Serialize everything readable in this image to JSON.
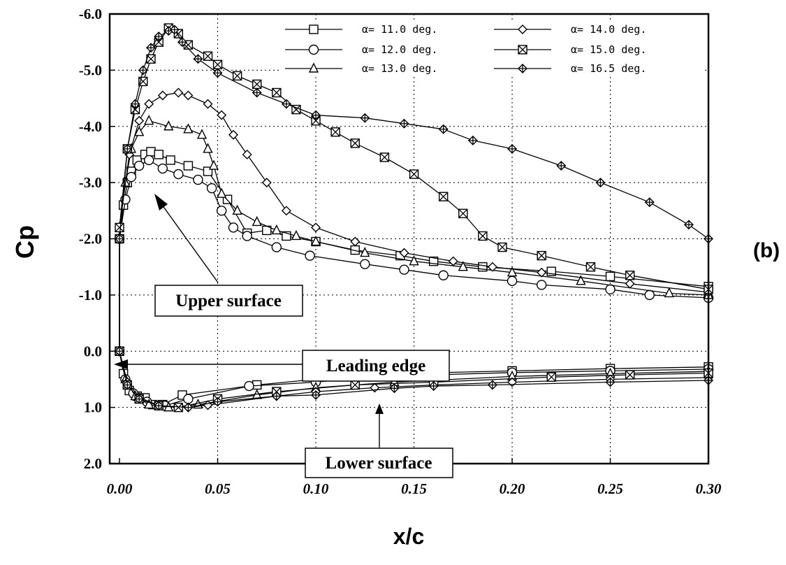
{
  "chart_data": {
    "type": "line",
    "xlabel": "x/c",
    "ylabel": "Cp",
    "panel_label": "(b)",
    "xlim": [
      -0.005,
      0.3
    ],
    "ylim": [
      2.0,
      -6.0
    ],
    "y_inverted": true,
    "grid": "dotted",
    "legend_placement": "top-right",
    "x_ticks": [
      "0.00",
      "0.05",
      "0.10",
      "0.15",
      "0.20",
      "0.25",
      "0.30"
    ],
    "y_ticks": [
      "-6.0",
      "-5.0",
      "-4.0",
      "-3.0",
      "-2.0",
      "-1.0",
      "0.0",
      "1.0",
      "2.0"
    ],
    "annotations": [
      "Upper surface",
      "Leading edge",
      "Lower surface"
    ],
    "series": [
      {
        "name": "α= 11.0 deg.",
        "marker": "square",
        "upper": [
          [
            0.0,
            -2.0
          ],
          [
            0.002,
            -2.6
          ],
          [
            0.004,
            -3.0
          ],
          [
            0.006,
            -3.2
          ],
          [
            0.009,
            -3.4
          ],
          [
            0.013,
            -3.5
          ],
          [
            0.016,
            -3.55
          ],
          [
            0.02,
            -3.5
          ],
          [
            0.026,
            -3.4
          ],
          [
            0.035,
            -3.3
          ],
          [
            0.045,
            -3.2
          ],
          [
            0.055,
            -2.7
          ],
          [
            0.065,
            -2.1
          ],
          [
            0.075,
            -2.15
          ],
          [
            0.085,
            -2.05
          ],
          [
            0.1,
            -1.95
          ],
          [
            0.12,
            -1.8
          ],
          [
            0.143,
            -1.7
          ],
          [
            0.16,
            -1.6
          ],
          [
            0.185,
            -1.5
          ],
          [
            0.22,
            -1.42
          ],
          [
            0.25,
            -1.33
          ],
          [
            0.3,
            -1.15
          ]
        ],
        "lower": [
          [
            0.0,
            0.0
          ],
          [
            0.002,
            0.4
          ],
          [
            0.005,
            0.7
          ],
          [
            0.009,
            0.8
          ],
          [
            0.013,
            0.83
          ],
          [
            0.017,
            0.95
          ],
          [
            0.022,
            0.95
          ],
          [
            0.032,
            0.78
          ],
          [
            0.07,
            0.6
          ],
          [
            0.1,
            0.5
          ],
          [
            0.14,
            0.4
          ],
          [
            0.2,
            0.35
          ],
          [
            0.25,
            0.31
          ],
          [
            0.3,
            0.28
          ]
        ]
      },
      {
        "name": "α= 12.0 deg.",
        "marker": "circle",
        "upper": [
          [
            0.0,
            -2.0
          ],
          [
            0.003,
            -2.7
          ],
          [
            0.006,
            -3.1
          ],
          [
            0.01,
            -3.3
          ],
          [
            0.015,
            -3.4
          ],
          [
            0.022,
            -3.25
          ],
          [
            0.03,
            -3.15
          ],
          [
            0.04,
            -3.05
          ],
          [
            0.047,
            -2.9
          ],
          [
            0.052,
            -2.5
          ],
          [
            0.058,
            -2.2
          ],
          [
            0.065,
            -2.05
          ],
          [
            0.08,
            -1.85
          ],
          [
            0.097,
            -1.7
          ],
          [
            0.125,
            -1.55
          ],
          [
            0.145,
            -1.45
          ],
          [
            0.165,
            -1.35
          ],
          [
            0.2,
            -1.25
          ],
          [
            0.215,
            -1.18
          ],
          [
            0.25,
            -1.1
          ],
          [
            0.27,
            -1.0
          ],
          [
            0.3,
            -0.95
          ]
        ],
        "lower": [
          [
            0.0,
            0.0
          ],
          [
            0.003,
            0.5
          ],
          [
            0.007,
            0.75
          ],
          [
            0.014,
            0.9
          ],
          [
            0.023,
            0.97
          ],
          [
            0.035,
            0.85
          ],
          [
            0.066,
            0.62
          ],
          [
            0.1,
            0.55
          ],
          [
            0.128,
            0.45
          ],
          [
            0.16,
            0.42
          ],
          [
            0.2,
            0.38
          ],
          [
            0.25,
            0.35
          ],
          [
            0.3,
            0.32
          ]
        ]
      },
      {
        "name": "α= 13.0 deg.",
        "marker": "triangle",
        "upper": [
          [
            0.0,
            -2.2
          ],
          [
            0.003,
            -3.0
          ],
          [
            0.006,
            -3.6
          ],
          [
            0.01,
            -3.9
          ],
          [
            0.015,
            -4.1
          ],
          [
            0.025,
            -4.0
          ],
          [
            0.035,
            -3.95
          ],
          [
            0.042,
            -3.85
          ],
          [
            0.045,
            -3.6
          ],
          [
            0.048,
            -3.3
          ],
          [
            0.052,
            -2.8
          ],
          [
            0.06,
            -2.5
          ],
          [
            0.07,
            -2.3
          ],
          [
            0.08,
            -2.15
          ],
          [
            0.09,
            -2.05
          ],
          [
            0.1,
            -1.95
          ],
          [
            0.125,
            -1.75
          ],
          [
            0.15,
            -1.6
          ],
          [
            0.175,
            -1.5
          ],
          [
            0.2,
            -1.4
          ],
          [
            0.235,
            -1.25
          ],
          [
            0.28,
            -1.03
          ],
          [
            0.3,
            -1.0
          ]
        ],
        "lower": [
          [
            0.0,
            0.0
          ],
          [
            0.003,
            0.5
          ],
          [
            0.008,
            0.8
          ],
          [
            0.015,
            0.95
          ],
          [
            0.025,
            1.0
          ],
          [
            0.04,
            0.95
          ],
          [
            0.07,
            0.78
          ],
          [
            0.1,
            0.65
          ],
          [
            0.14,
            0.55
          ],
          [
            0.2,
            0.45
          ],
          [
            0.25,
            0.4
          ],
          [
            0.3,
            0.36
          ]
        ]
      },
      {
        "name": "α= 14.0 deg.",
        "marker": "diamond",
        "upper": [
          [
            0.0,
            -2.2
          ],
          [
            0.005,
            -3.5
          ],
          [
            0.01,
            -4.1
          ],
          [
            0.015,
            -4.4
          ],
          [
            0.022,
            -4.55
          ],
          [
            0.03,
            -4.6
          ],
          [
            0.035,
            -4.55
          ],
          [
            0.045,
            -4.4
          ],
          [
            0.052,
            -4.2
          ],
          [
            0.058,
            -3.85
          ],
          [
            0.065,
            -3.5
          ],
          [
            0.075,
            -3.0
          ],
          [
            0.085,
            -2.5
          ],
          [
            0.1,
            -2.2
          ],
          [
            0.12,
            -1.95
          ],
          [
            0.145,
            -1.75
          ],
          [
            0.17,
            -1.6
          ],
          [
            0.19,
            -1.5
          ],
          [
            0.215,
            -1.4
          ],
          [
            0.26,
            -1.2
          ],
          [
            0.3,
            -1.05
          ]
        ],
        "lower": [
          [
            0.0,
            0.0
          ],
          [
            0.004,
            0.55
          ],
          [
            0.01,
            0.82
          ],
          [
            0.02,
            0.97
          ],
          [
            0.035,
            1.0
          ],
          [
            0.045,
            0.96
          ],
          [
            0.08,
            0.8
          ],
          [
            0.1,
            0.72
          ],
          [
            0.13,
            0.65
          ],
          [
            0.16,
            0.6
          ],
          [
            0.2,
            0.55
          ],
          [
            0.25,
            0.5
          ],
          [
            0.3,
            0.47
          ]
        ]
      },
      {
        "name": "α= 15.0 deg.",
        "marker": "boxed-x",
        "upper": [
          [
            0.0,
            -2.2
          ],
          [
            0.004,
            -3.6
          ],
          [
            0.008,
            -4.3
          ],
          [
            0.012,
            -4.8
          ],
          [
            0.016,
            -5.2
          ],
          [
            0.02,
            -5.5
          ],
          [
            0.025,
            -5.75
          ],
          [
            0.03,
            -5.65
          ],
          [
            0.035,
            -5.45
          ],
          [
            0.045,
            -5.25
          ],
          [
            0.05,
            -5.1
          ],
          [
            0.06,
            -4.9
          ],
          [
            0.07,
            -4.75
          ],
          [
            0.08,
            -4.6
          ],
          [
            0.09,
            -4.3
          ],
          [
            0.1,
            -4.1
          ],
          [
            0.11,
            -3.9
          ],
          [
            0.12,
            -3.7
          ],
          [
            0.135,
            -3.45
          ],
          [
            0.15,
            -3.15
          ],
          [
            0.165,
            -2.75
          ],
          [
            0.175,
            -2.45
          ],
          [
            0.185,
            -2.05
          ],
          [
            0.195,
            -1.85
          ],
          [
            0.215,
            -1.7
          ],
          [
            0.24,
            -1.5
          ],
          [
            0.26,
            -1.35
          ],
          [
            0.3,
            -1.1
          ]
        ],
        "lower": [
          [
            0.0,
            0.0
          ],
          [
            0.004,
            0.6
          ],
          [
            0.01,
            0.85
          ],
          [
            0.02,
            0.97
          ],
          [
            0.03,
            1.0
          ],
          [
            0.05,
            0.85
          ],
          [
            0.08,
            0.72
          ],
          [
            0.12,
            0.6
          ],
          [
            0.16,
            0.55
          ],
          [
            0.22,
            0.46
          ],
          [
            0.26,
            0.42
          ],
          [
            0.3,
            0.39
          ]
        ]
      },
      {
        "name": "α= 16.5 deg.",
        "marker": "filled-diamond",
        "upper": [
          [
            0.0,
            -2.0
          ],
          [
            0.004,
            -3.6
          ],
          [
            0.008,
            -4.4
          ],
          [
            0.012,
            -5.0
          ],
          [
            0.016,
            -5.4
          ],
          [
            0.02,
            -5.6
          ],
          [
            0.025,
            -5.7
          ],
          [
            0.028,
            -5.72
          ],
          [
            0.032,
            -5.5
          ],
          [
            0.04,
            -5.2
          ],
          [
            0.05,
            -4.95
          ],
          [
            0.07,
            -4.6
          ],
          [
            0.085,
            -4.4
          ],
          [
            0.1,
            -4.2
          ],
          [
            0.125,
            -4.15
          ],
          [
            0.145,
            -4.05
          ],
          [
            0.165,
            -3.95
          ],
          [
            0.18,
            -3.75
          ],
          [
            0.2,
            -3.6
          ],
          [
            0.225,
            -3.3
          ],
          [
            0.245,
            -3.0
          ],
          [
            0.27,
            -2.65
          ],
          [
            0.29,
            -2.25
          ],
          [
            0.3,
            -2.0
          ]
        ],
        "lower": [
          [
            0.0,
            0.0
          ],
          [
            0.004,
            0.6
          ],
          [
            0.01,
            0.85
          ],
          [
            0.02,
            0.97
          ],
          [
            0.035,
            1.0
          ],
          [
            0.05,
            0.9
          ],
          [
            0.08,
            0.8
          ],
          [
            0.1,
            0.78
          ],
          [
            0.14,
            0.66
          ],
          [
            0.16,
            0.62
          ],
          [
            0.19,
            0.6
          ],
          [
            0.25,
            0.55
          ],
          [
            0.3,
            0.52
          ]
        ]
      }
    ]
  }
}
